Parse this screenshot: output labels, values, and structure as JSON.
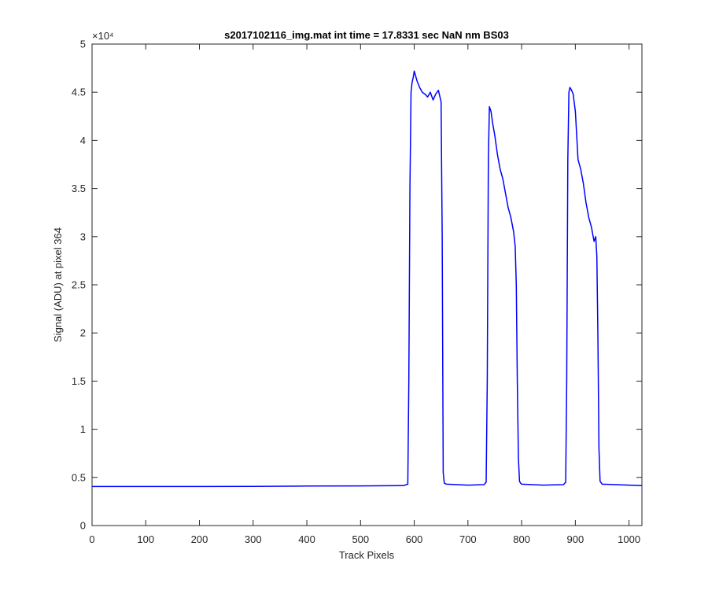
{
  "chart_data": {
    "type": "line",
    "title": "s2017102116_img.mat int time = 17.8331 sec  NaN nm BS03",
    "xlabel": "Track Pixels",
    "ylabel": "Signal (ADU) at pixel 364",
    "y_exponent_label": "×10⁴",
    "xlim": [
      0,
      1024
    ],
    "ylim": [
      0,
      5
    ],
    "y_scale_factor": 10000,
    "x_ticks": [
      "0",
      "100",
      "200",
      "300",
      "400",
      "500",
      "600",
      "700",
      "800",
      "900",
      "1000"
    ],
    "y_ticks": [
      "0",
      "0.5",
      "1",
      "1.5",
      "2",
      "2.5",
      "3",
      "3.5",
      "4",
      "4.5",
      "5"
    ],
    "grid": false,
    "line_color": "#0000ff",
    "series": [
      {
        "x": [
          0,
          100,
          200,
          300,
          400,
          500,
          580,
          588,
          590,
          592,
          594,
          596,
          598,
          600,
          605,
          610,
          615,
          620,
          625,
          630,
          635,
          640,
          645,
          650,
          652,
          654,
          656,
          660,
          700,
          730,
          734,
          736,
          738,
          740,
          743,
          746,
          750,
          755,
          760,
          765,
          770,
          775,
          780,
          785,
          788,
          790,
          792,
          794,
          796,
          798,
          800,
          840,
          878,
          882,
          884,
          886,
          888,
          890,
          893,
          896,
          900,
          905,
          910,
          915,
          920,
          925,
          930,
          935,
          938,
          940,
          942,
          944,
          946,
          950,
          1000,
          1024
        ],
        "y": [
          0.405,
          0.405,
          0.405,
          0.407,
          0.41,
          0.412,
          0.415,
          0.43,
          1.5,
          3.5,
          4.5,
          4.6,
          4.65,
          4.72,
          4.62,
          4.55,
          4.5,
          4.48,
          4.45,
          4.5,
          4.42,
          4.48,
          4.52,
          4.4,
          3.0,
          0.55,
          0.44,
          0.43,
          0.42,
          0.425,
          0.45,
          1.5,
          3.8,
          4.35,
          4.3,
          4.18,
          4.05,
          3.85,
          3.7,
          3.6,
          3.45,
          3.3,
          3.2,
          3.05,
          2.9,
          2.5,
          1.5,
          0.7,
          0.46,
          0.44,
          0.43,
          0.42,
          0.425,
          0.45,
          1.5,
          3.8,
          4.5,
          4.55,
          4.52,
          4.48,
          4.3,
          3.8,
          3.7,
          3.55,
          3.35,
          3.2,
          3.1,
          2.95,
          3.0,
          2.8,
          2.0,
          0.8,
          0.46,
          0.43,
          0.42,
          0.415
        ]
      }
    ]
  }
}
